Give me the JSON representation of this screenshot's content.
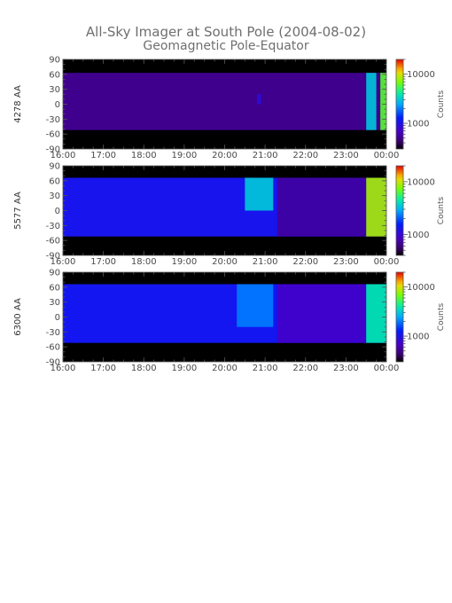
{
  "chart_data": [
    {
      "type": "heatmap",
      "panel_label": "4278 AA",
      "title": "All-Sky Imager at South Pole (2004-08-02)",
      "subtitle": "Geomagnetic Pole-Equator",
      "x_ticks": [
        "16:00",
        "17:00",
        "18:00",
        "19:00",
        "20:00",
        "21:00",
        "22:00",
        "23:00",
        "00:00"
      ],
      "y_ticks": [
        90,
        60,
        30,
        0,
        -30,
        -60,
        -90
      ],
      "ylim": [
        -90,
        90
      ],
      "colorbar": {
        "label": "Counts",
        "scale": "log",
        "ticks": [
          "10000",
          "1000"
        ],
        "range": [
          300,
          20000
        ]
      },
      "data_band_lat": [
        -52,
        63
      ],
      "base_counts": 500,
      "features": [
        {
          "t_start": 23.5,
          "t_end": 23.75,
          "lat_min": -52,
          "lat_max": 63,
          "counts": 3000
        },
        {
          "t_start": 23.85,
          "t_end": 24.0,
          "lat_min": -52,
          "lat_max": 63,
          "counts": 6000
        },
        {
          "t_start": 20.8,
          "t_end": 20.9,
          "lat_min": 0,
          "lat_max": 20,
          "counts": 900
        }
      ]
    },
    {
      "type": "heatmap",
      "panel_label": "5577 AA",
      "x_ticks": [
        "16:00",
        "17:00",
        "18:00",
        "19:00",
        "20:00",
        "21:00",
        "22:00",
        "23:00",
        "00:00"
      ],
      "y_ticks": [
        90,
        60,
        30,
        0,
        -30,
        -60,
        -90
      ],
      "ylim": [
        -90,
        90
      ],
      "colorbar": {
        "label": "Counts",
        "scale": "log",
        "ticks": [
          "10000",
          "1000"
        ],
        "range": [
          400,
          20000
        ]
      },
      "data_band_lat": [
        -52,
        66
      ],
      "base_counts": 1300,
      "features": [
        {
          "t_start": 20.5,
          "t_end": 21.2,
          "lat_min": 0,
          "lat_max": 66,
          "counts": 3500
        },
        {
          "t_start": 21.3,
          "t_end": 23.5,
          "lat_min": -52,
          "lat_max": 66,
          "counts": 700
        },
        {
          "t_start": 23.5,
          "t_end": 24.0,
          "lat_min": -52,
          "lat_max": 66,
          "counts": 9000
        }
      ]
    },
    {
      "type": "heatmap",
      "panel_label": "6300 AA",
      "x_ticks": [
        "16:00",
        "17:00",
        "18:00",
        "19:00",
        "20:00",
        "21:00",
        "22:00",
        "23:00",
        "00:00"
      ],
      "y_ticks": [
        90,
        60,
        30,
        0,
        -30,
        -60,
        -90
      ],
      "ylim": [
        -90,
        90
      ],
      "colorbar": {
        "label": "Counts",
        "scale": "log",
        "ticks": [
          "10000",
          "1000"
        ],
        "range": [
          300,
          20000
        ]
      },
      "data_band_lat": [
        -52,
        66
      ],
      "base_counts": 1100,
      "features": [
        {
          "t_start": 20.3,
          "t_end": 21.2,
          "lat_min": -20,
          "lat_max": 66,
          "counts": 2000
        },
        {
          "t_start": 21.3,
          "t_end": 23.5,
          "lat_min": -52,
          "lat_max": 66,
          "counts": 700
        },
        {
          "t_start": 23.5,
          "t_end": 24.0,
          "lat_min": -52,
          "lat_max": 66,
          "counts": 4000
        }
      ]
    }
  ]
}
